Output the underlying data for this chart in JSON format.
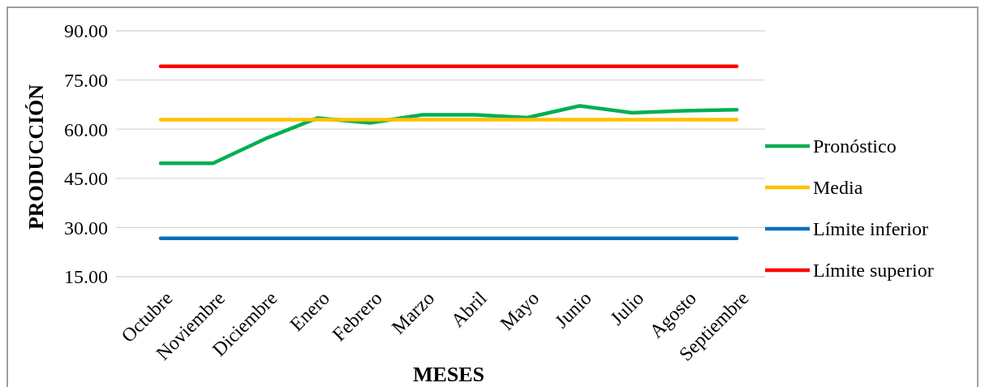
{
  "chart_data": {
    "type": "line",
    "xlabel": "MESES",
    "ylabel": "PRODUCCIÓN",
    "categories": [
      "Octubre",
      "Noviembre",
      "Diciembre",
      "Enero",
      "Febrero",
      "Marzo",
      "Abril",
      "Mayo",
      "Junio",
      "Julio",
      "Agosto",
      "Septiembre"
    ],
    "series": [
      {
        "name": "Pronóstico",
        "color": "#00b050",
        "values": [
          49.6,
          49.6,
          57.1,
          63.4,
          61.9,
          64.4,
          64.4,
          63.5,
          67.1,
          65.0,
          65.6,
          65.9
        ]
      },
      {
        "name": "Media",
        "color": "#ffc000",
        "values": [
          62.9,
          62.9,
          62.9,
          62.9,
          62.9,
          62.9,
          62.9,
          62.9,
          62.9,
          62.9,
          62.9,
          62.9
        ]
      },
      {
        "name": "Límite inferior",
        "color": "#0070c0",
        "values": [
          26.7,
          26.7,
          26.7,
          26.7,
          26.7,
          26.7,
          26.7,
          26.7,
          26.7,
          26.7,
          26.7,
          26.7
        ]
      },
      {
        "name": "Límite superior",
        "color": "#ff0000",
        "values": [
          79.2,
          79.2,
          79.2,
          79.2,
          79.2,
          79.2,
          79.2,
          79.2,
          79.2,
          79.2,
          79.2,
          79.2
        ]
      }
    ],
    "ylim": [
      15,
      90
    ],
    "yticks": [
      {
        "value": 15,
        "label": "15.00"
      },
      {
        "value": 30,
        "label": "30.00"
      },
      {
        "value": 45,
        "label": "45.00"
      },
      {
        "value": 60,
        "label": "60.00"
      },
      {
        "value": 75,
        "label": "75.00"
      },
      {
        "value": 90,
        "label": "90.00"
      }
    ],
    "grid": "y",
    "legend": "right",
    "marker": "none",
    "line_style": "solid"
  }
}
